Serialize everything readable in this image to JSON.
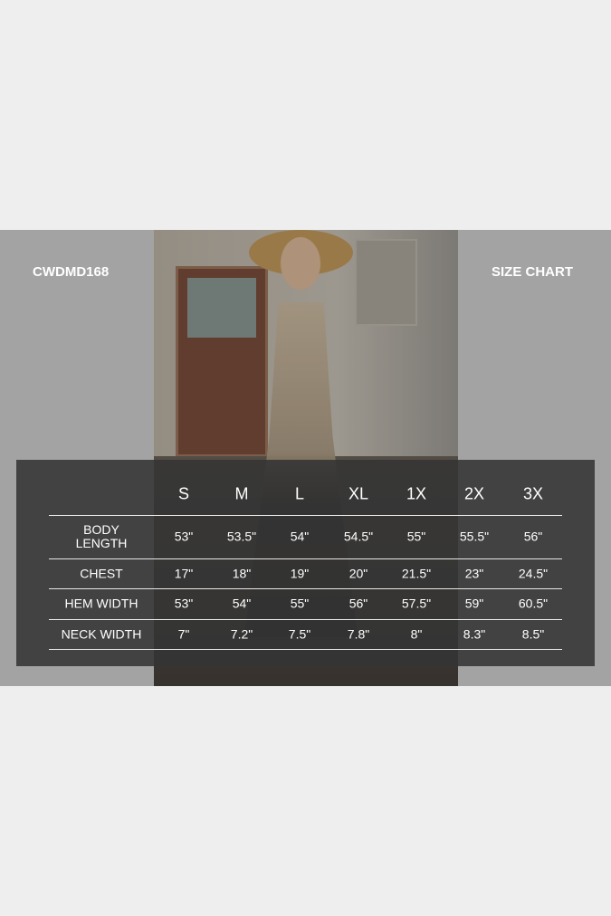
{
  "product_code": "CWDMD168",
  "title": "SIZE CHART",
  "photo": {
    "description_icon": "model-photo"
  },
  "table": {
    "sizes": [
      "S",
      "M",
      "L",
      "XL",
      "1X",
      "2X",
      "3X"
    ],
    "rows": [
      {
        "label_lines": [
          "BODY",
          "LENGTH"
        ],
        "values": [
          "53\"",
          "53.5\"",
          "54\"",
          "54.5\"",
          "55\"",
          "55.5\"",
          "56\""
        ]
      },
      {
        "label_lines": [
          "CHEST"
        ],
        "values": [
          "17\"",
          "18\"",
          "19\"",
          "20\"",
          "21.5\"",
          "23\"",
          "24.5\""
        ]
      },
      {
        "label_lines": [
          "HEM WIDTH"
        ],
        "values": [
          "53\"",
          "54\"",
          "55\"",
          "56\"",
          "57.5\"",
          "59\"",
          "60.5\""
        ]
      },
      {
        "label_lines": [
          "NECK WIDTH"
        ],
        "values": [
          "7\"",
          "7.2\"",
          "7.5\"",
          "7.8\"",
          "8\"",
          "8.3\"",
          "8.5\""
        ]
      }
    ]
  }
}
